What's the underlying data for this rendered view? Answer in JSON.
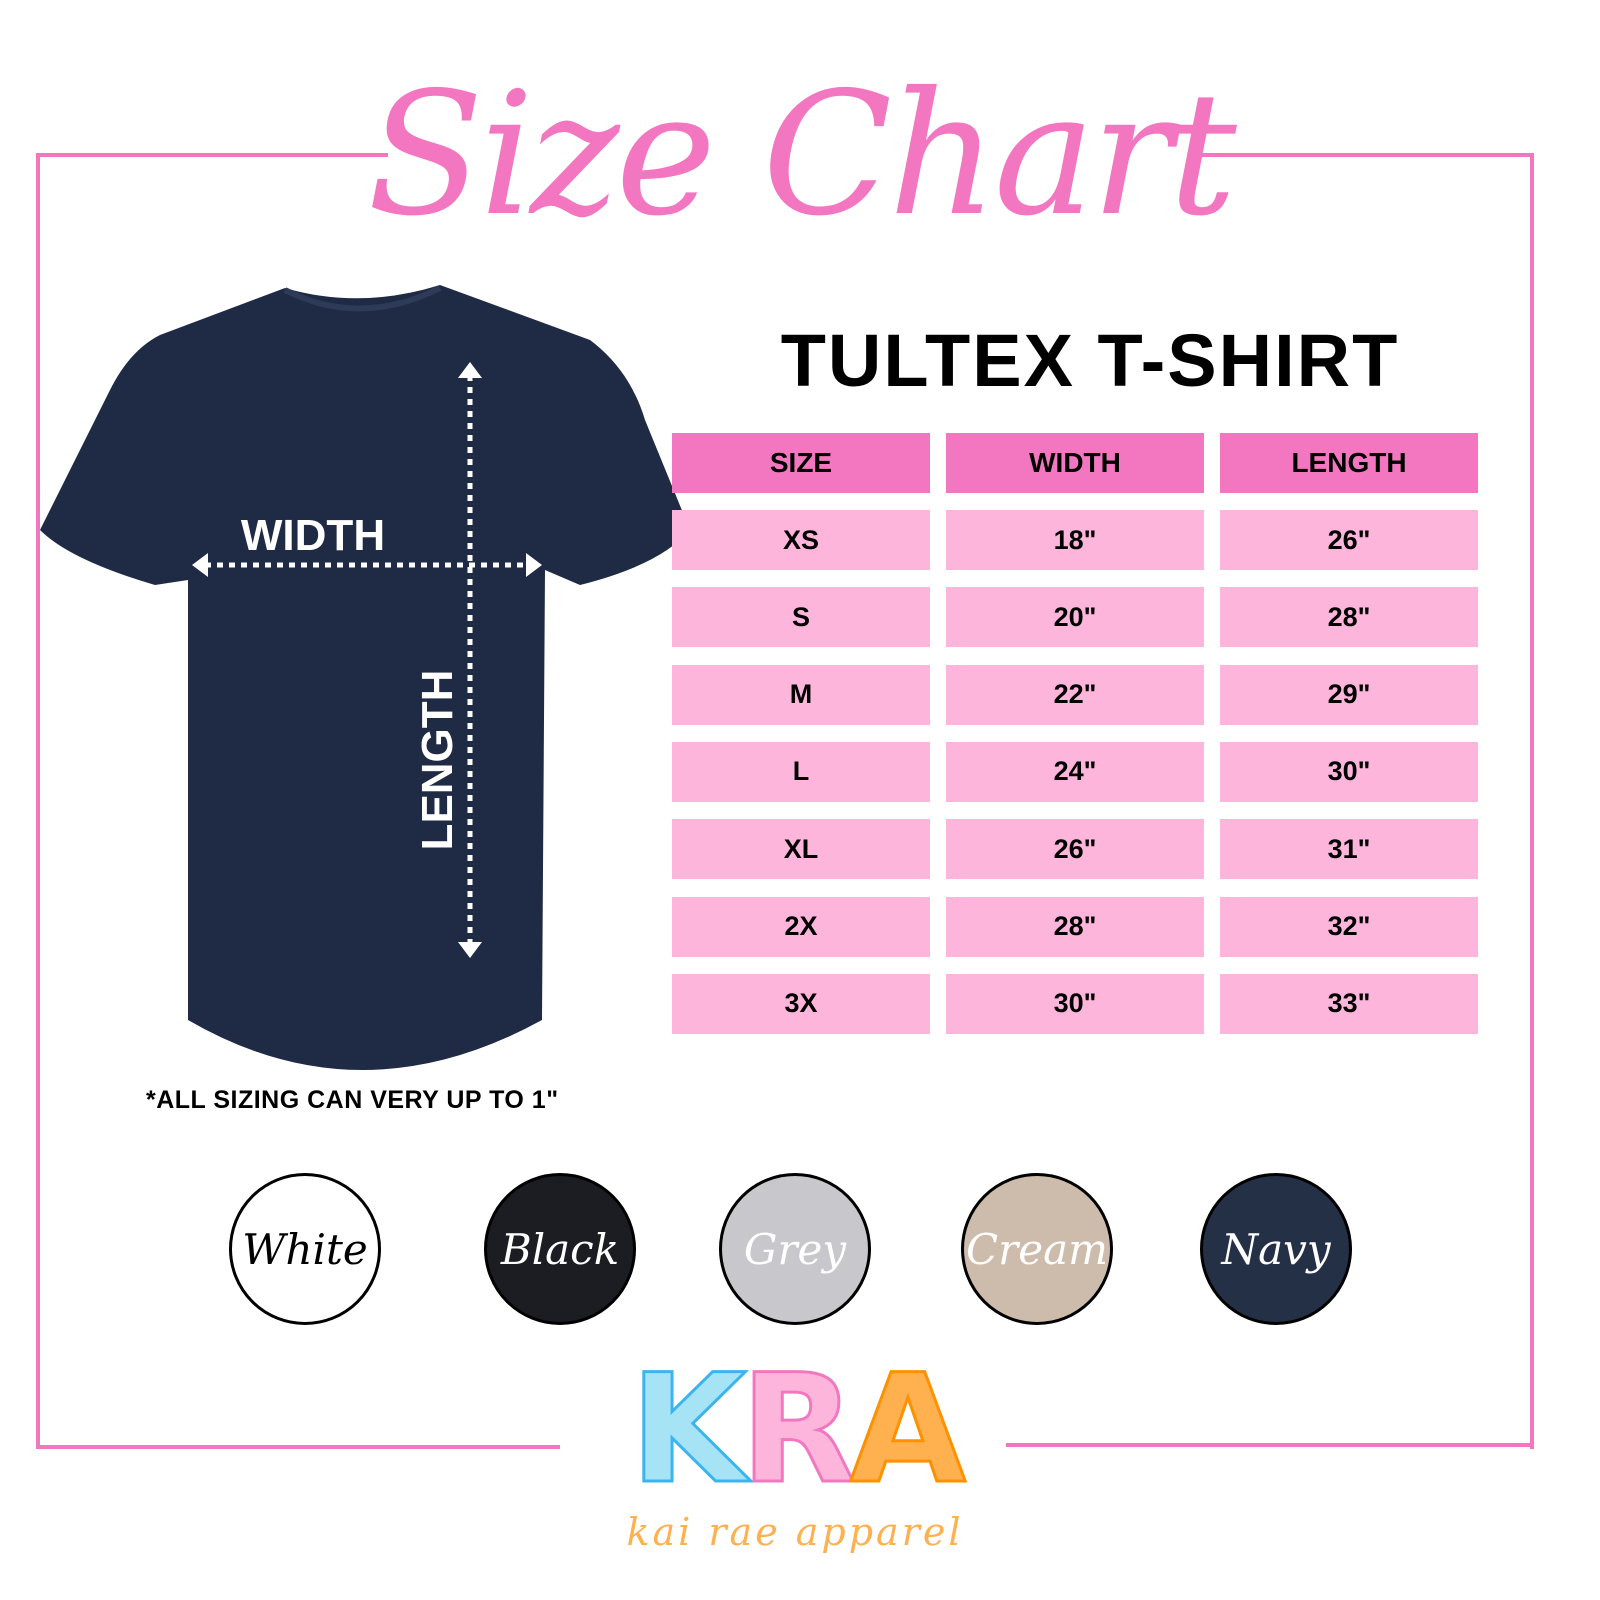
{
  "title": "Size Chart",
  "product": "TULTEX T-SHIRT",
  "diagram": {
    "width_label": "WIDTH",
    "length_label": "LENGTH",
    "shirt_color": "#1f2a44"
  },
  "table": {
    "headers": [
      "SIZE",
      "WIDTH",
      "LENGTH"
    ],
    "rows": [
      [
        "XS",
        "18\"",
        "26\""
      ],
      [
        "S",
        "20\"",
        "28\""
      ],
      [
        "M",
        "22\"",
        "29\""
      ],
      [
        "L",
        "24\"",
        "30\""
      ],
      [
        "XL",
        "26\"",
        "31\""
      ],
      [
        "2X",
        "28\"",
        "32\""
      ],
      [
        "3X",
        "30\"",
        "33\""
      ]
    ],
    "header_color": "#f277c0",
    "row_color": "#fdb5dc"
  },
  "note": "*ALL SIZING CAN VERY UP TO 1\"",
  "colors": [
    {
      "label": "White",
      "fill": "#ffffff",
      "text": "#000000"
    },
    {
      "label": "Black",
      "fill": "#1c1d22",
      "text": "#ffffff"
    },
    {
      "label": "Grey",
      "fill": "#c7c7cc",
      "text": "#ffffff"
    },
    {
      "label": "Cream",
      "fill": "#cdbcab",
      "text": "#ffffff"
    },
    {
      "label": "Navy",
      "fill": "#243046",
      "text": "#ffffff"
    }
  ],
  "logo": {
    "letters": [
      "K",
      "R",
      "A"
    ],
    "letter_colors": [
      "#a6e4f5",
      "#fdb5dc",
      "#ffb04f"
    ],
    "tagline": "kai rae apparel"
  },
  "accent": "#f277c0"
}
